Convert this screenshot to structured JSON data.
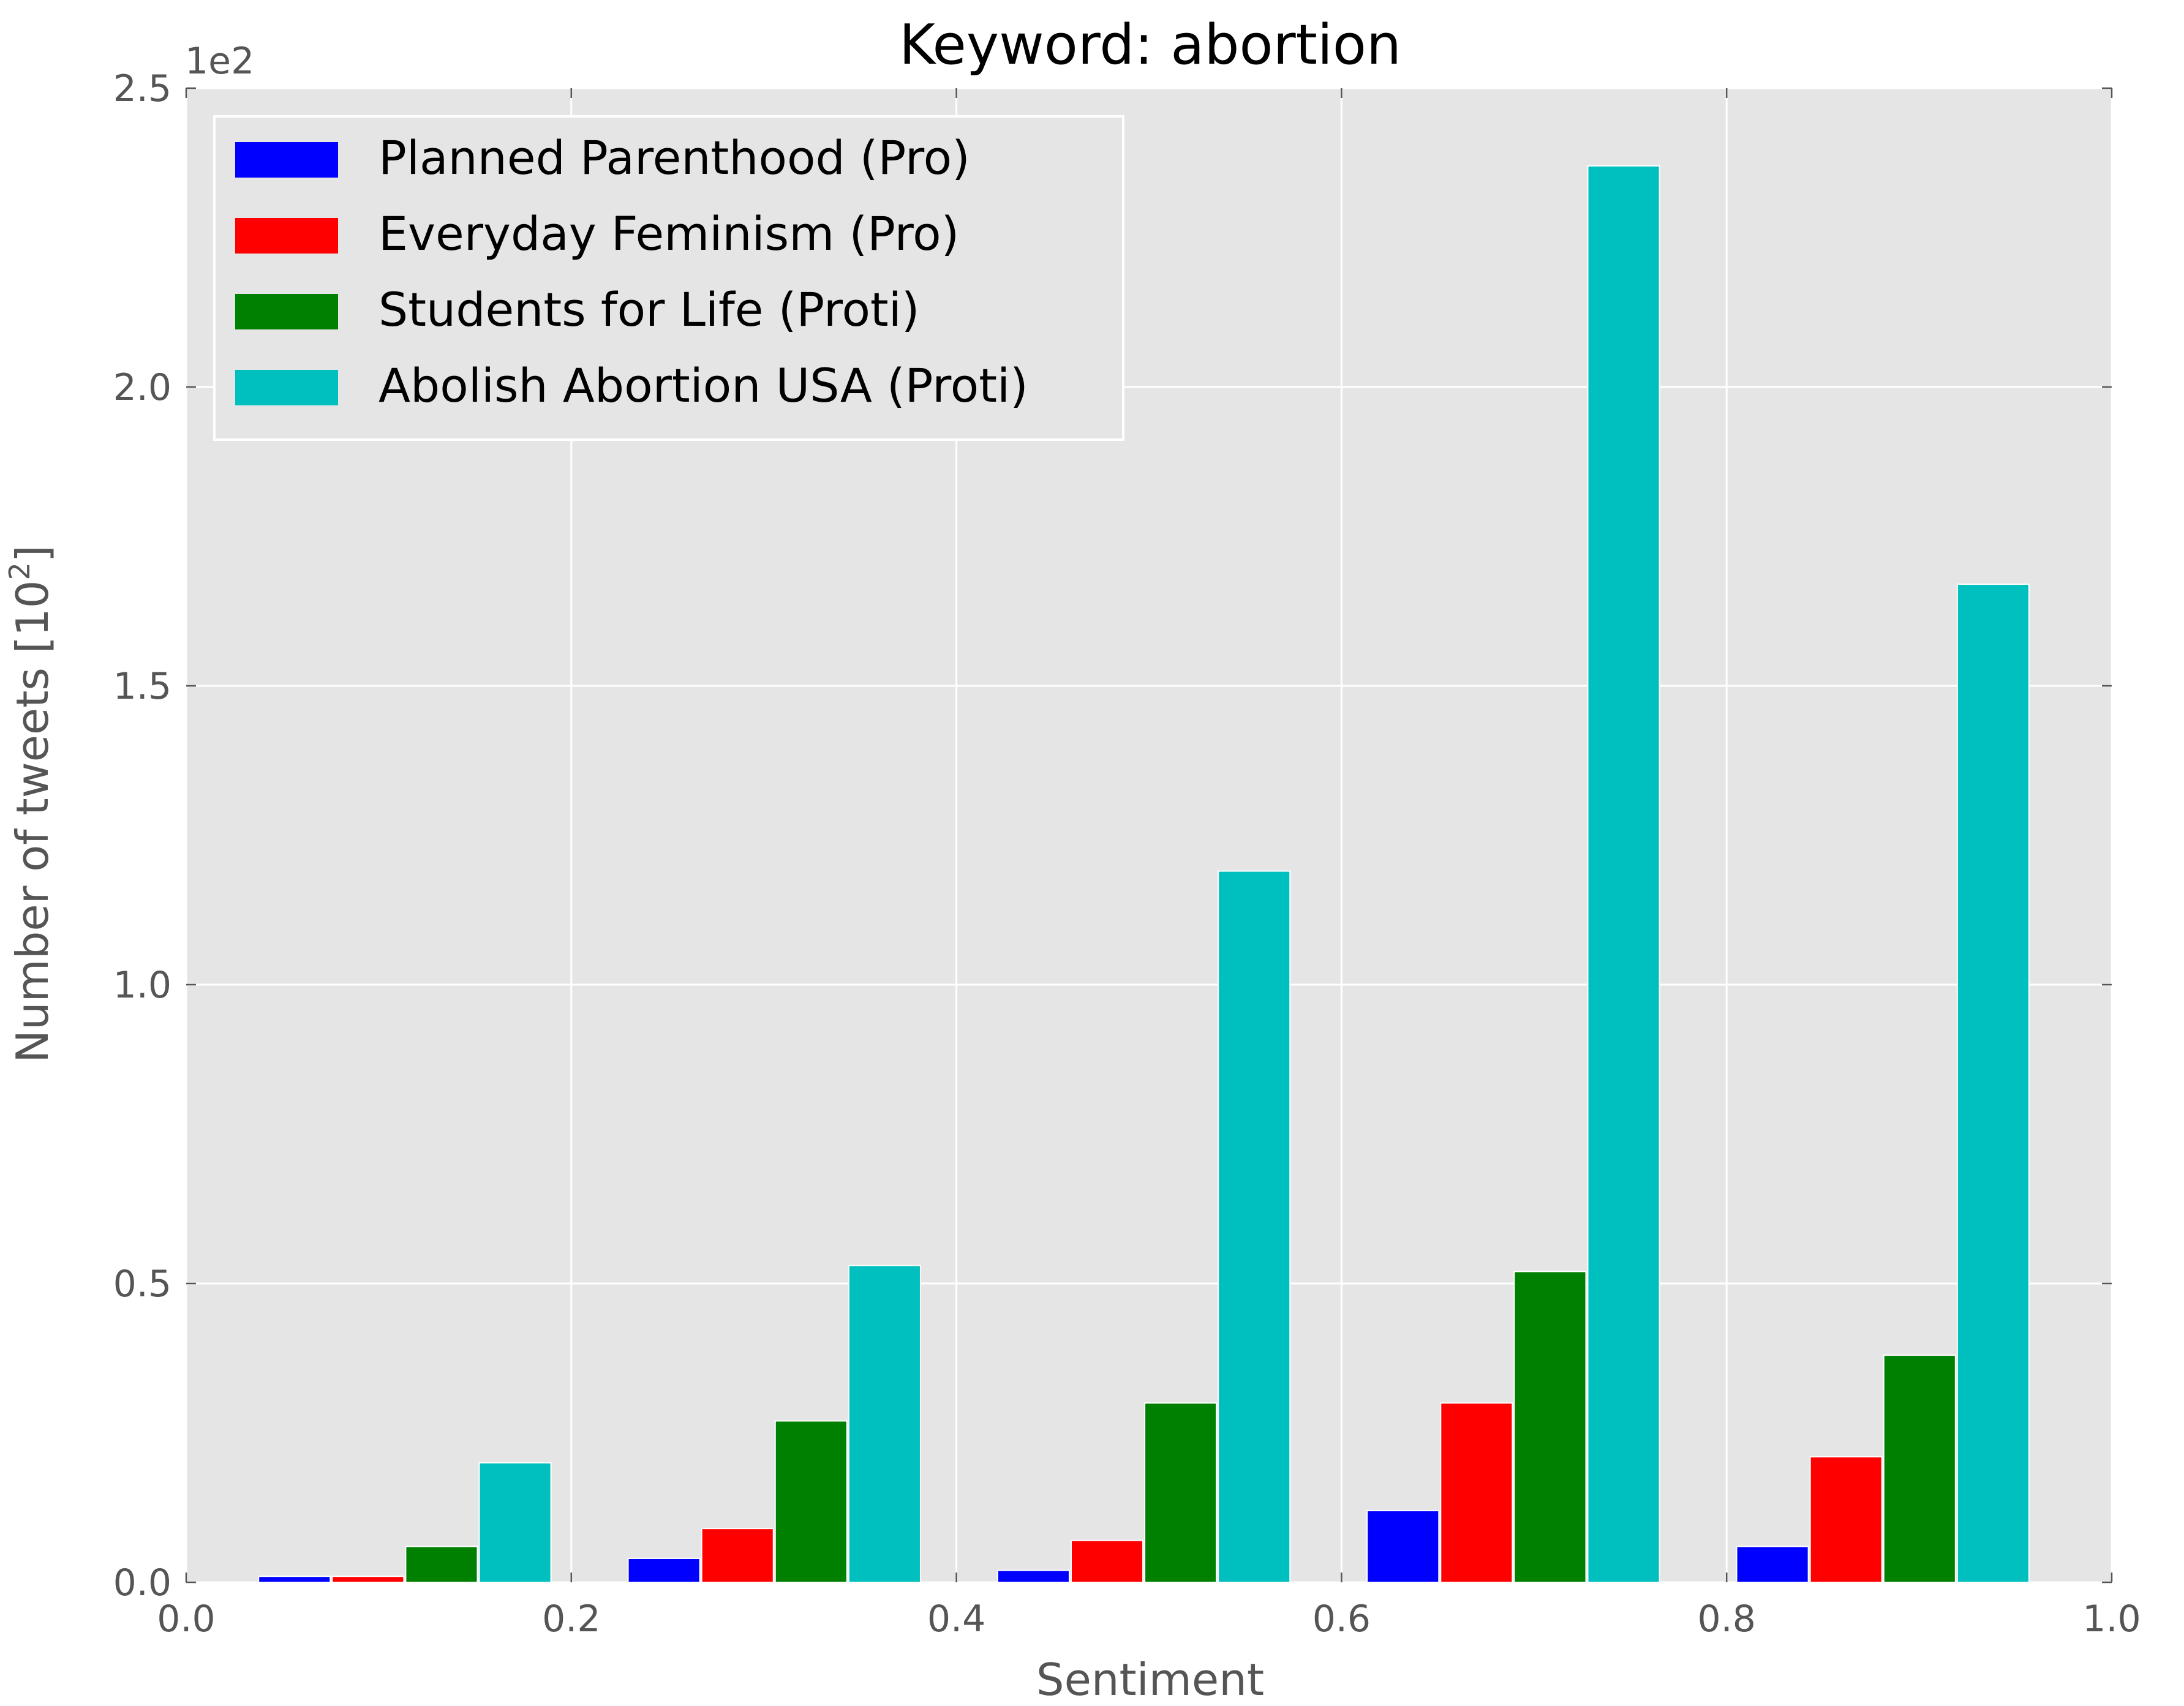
{
  "chart_data": {
    "type": "bar",
    "title": "Keyword: abortion",
    "xlabel": "Sentiment",
    "ylabel": "Number of tweets [10",
    "ylabel_exp": "2",
    "ylabel_close": "]",
    "y_offset_label": "1e2",
    "xlim": [
      0.0,
      1.0
    ],
    "ylim": [
      0.0,
      2.5
    ],
    "x_ticks": [
      "0.0",
      "0.2",
      "0.4",
      "0.6",
      "0.8",
      "1.0"
    ],
    "y_ticks": [
      "0.0",
      "0.5",
      "1.0",
      "1.5",
      "2.0",
      "2.5"
    ],
    "grid": true,
    "legend_position": "upper-left",
    "bin_edges": [
      0.0,
      0.2,
      0.4,
      0.6,
      0.8,
      1.0
    ],
    "series": [
      {
        "name": "Planned Parenthood (Pro)",
        "color": "#0000ff",
        "values": [
          0.01,
          0.04,
          0.02,
          0.12,
          0.06
        ]
      },
      {
        "name": "Everyday Feminism (Pro)",
        "color": "#ff0000",
        "values": [
          0.01,
          0.09,
          0.07,
          0.3,
          0.21
        ]
      },
      {
        "name": "Students for Life (Proti)",
        "color": "#008000",
        "values": [
          0.06,
          0.27,
          0.3,
          0.52,
          0.38
        ]
      },
      {
        "name": "Abolish Abortion USA (Proti)",
        "color": "#00bfbf",
        "values": [
          0.2,
          0.53,
          1.19,
          2.37,
          1.67
        ]
      }
    ]
  }
}
